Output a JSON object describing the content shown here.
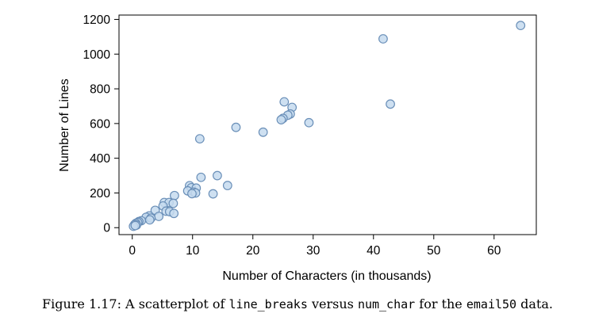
{
  "chart_data": {
    "type": "scatter",
    "title": "",
    "xlabel": "Number of Characters (in thousands)",
    "ylabel": "Number of Lines",
    "xlim": [
      -2.2,
      67
    ],
    "ylim": [
      -40,
      1225
    ],
    "xticks": [
      0,
      10,
      20,
      30,
      40,
      50,
      60
    ],
    "yticks": [
      0,
      200,
      400,
      600,
      800,
      1000,
      1200
    ],
    "grid": false,
    "legend": "none",
    "marker": {
      "fill": "#c6dbef",
      "stroke": "#6a8fb8"
    },
    "points": [
      {
        "x": 64.4,
        "y": 1165
      },
      {
        "x": 41.6,
        "y": 1088
      },
      {
        "x": 42.8,
        "y": 712
      },
      {
        "x": 25.2,
        "y": 725
      },
      {
        "x": 26.5,
        "y": 693
      },
      {
        "x": 26.2,
        "y": 655
      },
      {
        "x": 25.8,
        "y": 648
      },
      {
        "x": 25.0,
        "y": 630
      },
      {
        "x": 24.7,
        "y": 622
      },
      {
        "x": 29.3,
        "y": 605
      },
      {
        "x": 17.2,
        "y": 578
      },
      {
        "x": 21.7,
        "y": 550
      },
      {
        "x": 11.2,
        "y": 512
      },
      {
        "x": 14.1,
        "y": 300
      },
      {
        "x": 11.4,
        "y": 290
      },
      {
        "x": 15.8,
        "y": 243
      },
      {
        "x": 13.4,
        "y": 195
      },
      {
        "x": 9.5,
        "y": 242
      },
      {
        "x": 9.8,
        "y": 230
      },
      {
        "x": 10.6,
        "y": 228
      },
      {
        "x": 9.2,
        "y": 212
      },
      {
        "x": 10.2,
        "y": 205
      },
      {
        "x": 10.5,
        "y": 200
      },
      {
        "x": 9.9,
        "y": 196
      },
      {
        "x": 7.0,
        "y": 185
      },
      {
        "x": 5.3,
        "y": 145
      },
      {
        "x": 6.1,
        "y": 145
      },
      {
        "x": 6.8,
        "y": 140
      },
      {
        "x": 5.1,
        "y": 125
      },
      {
        "x": 3.8,
        "y": 100
      },
      {
        "x": 5.6,
        "y": 95
      },
      {
        "x": 6.2,
        "y": 92
      },
      {
        "x": 6.9,
        "y": 82
      },
      {
        "x": 4.4,
        "y": 65
      },
      {
        "x": 2.8,
        "y": 68
      },
      {
        "x": 2.3,
        "y": 60
      },
      {
        "x": 3.1,
        "y": 55
      },
      {
        "x": 2.9,
        "y": 45
      },
      {
        "x": 1.5,
        "y": 40
      },
      {
        "x": 1.1,
        "y": 35
      },
      {
        "x": 0.9,
        "y": 30
      },
      {
        "x": 0.6,
        "y": 25
      },
      {
        "x": 0.4,
        "y": 18
      },
      {
        "x": 0.7,
        "y": 15
      },
      {
        "x": 0.2,
        "y": 8
      },
      {
        "x": 0.5,
        "y": 12
      }
    ]
  },
  "caption": {
    "prefix": "Figure 1.17:  A scatterplot of ",
    "var1": "line_breaks",
    "middle": " versus ",
    "var2": "num_char",
    "middle2": " for the ",
    "dataset": "email50",
    "suffix": " data."
  }
}
